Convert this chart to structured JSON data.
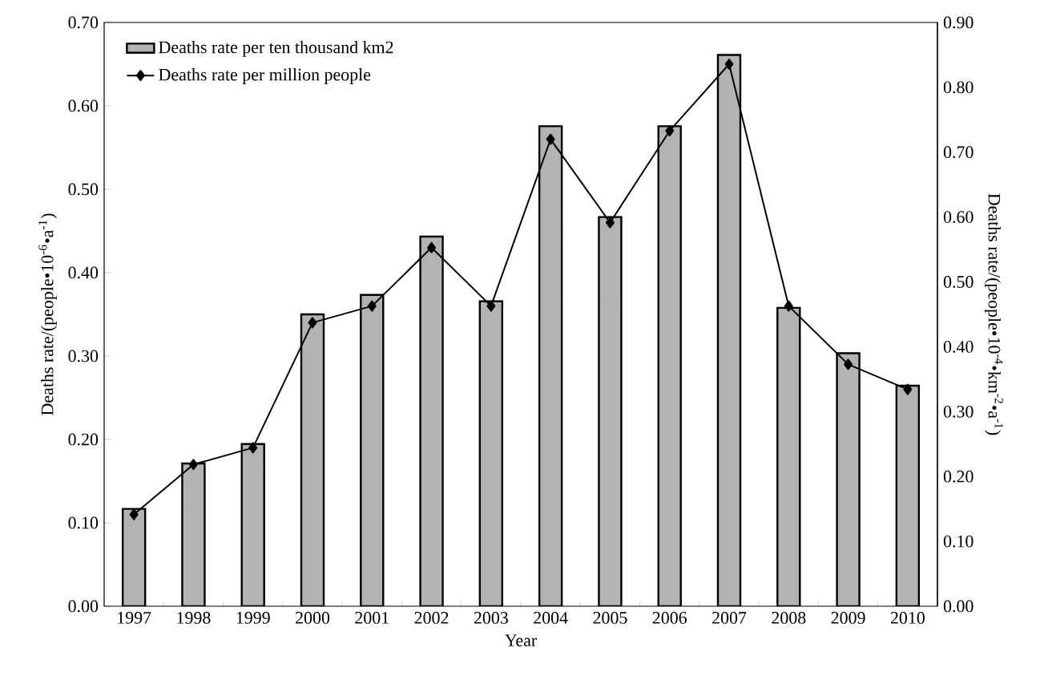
{
  "chart_data": {
    "type": "bar",
    "xlabel": "Year",
    "ylabel": "Deaths rate/(people•10$^{-6}$•a$^{-1}$)",
    "y2label": "Deaths rate/(people•10$^{-4}$•km$^{-2}$•a$^{-1}$)",
    "categories": [
      "1997",
      "1998",
      "1999",
      "2000",
      "2001",
      "2002",
      "2003",
      "2004",
      "2005",
      "2006",
      "2007",
      "2008",
      "2009",
      "2010"
    ],
    "series": [
      {
        "name": "Deaths rate per ten thousand km2",
        "axis": "y2",
        "color": "#b3b3b3",
        "values": [
          0.15,
          0.22,
          0.25,
          0.45,
          0.48,
          0.57,
          0.47,
          0.74,
          0.6,
          0.74,
          0.85,
          0.46,
          0.39,
          0.34
        ]
      },
      {
        "name": "Deaths rate per million people",
        "type": "line",
        "color": "#000000",
        "values": [
          0.11,
          0.17,
          0.19,
          0.34,
          0.36,
          0.43,
          0.36,
          0.56,
          0.46,
          0.57,
          0.65,
          0.36,
          0.29,
          0.26
        ]
      }
    ],
    "ylim": [
      0,
      0.7
    ],
    "yticks": [
      {
        "value": 0,
        "label": "0.00"
      },
      {
        "value": 0.1,
        "label": "0.10"
      },
      {
        "value": 0.2,
        "label": "0.20"
      },
      {
        "value": 0.3,
        "label": "0.30"
      },
      {
        "value": 0.4,
        "label": "0.40"
      },
      {
        "value": 0.5,
        "label": "0.50"
      },
      {
        "value": 0.6,
        "label": "0.60"
      },
      {
        "value": 0.7,
        "label": "0.70"
      }
    ],
    "y2lim": [
      0,
      0.9
    ],
    "y2ticks": [
      {
        "value": 0,
        "label": "0.00"
      },
      {
        "value": 0.1,
        "label": "0.10"
      },
      {
        "value": 0.2,
        "label": "0.20"
      },
      {
        "value": 0.3,
        "label": "0.30"
      },
      {
        "value": 0.4,
        "label": "0.40"
      },
      {
        "value": 0.5,
        "label": "0.50"
      },
      {
        "value": 0.6,
        "label": "0.60"
      },
      {
        "value": 0.7,
        "label": "0.70"
      },
      {
        "value": 0.8,
        "label": "0.80"
      },
      {
        "value": 0.9,
        "label": "0.90"
      }
    ],
    "legend": "top left",
    "marker": "diamond",
    "line_style": "solid"
  }
}
